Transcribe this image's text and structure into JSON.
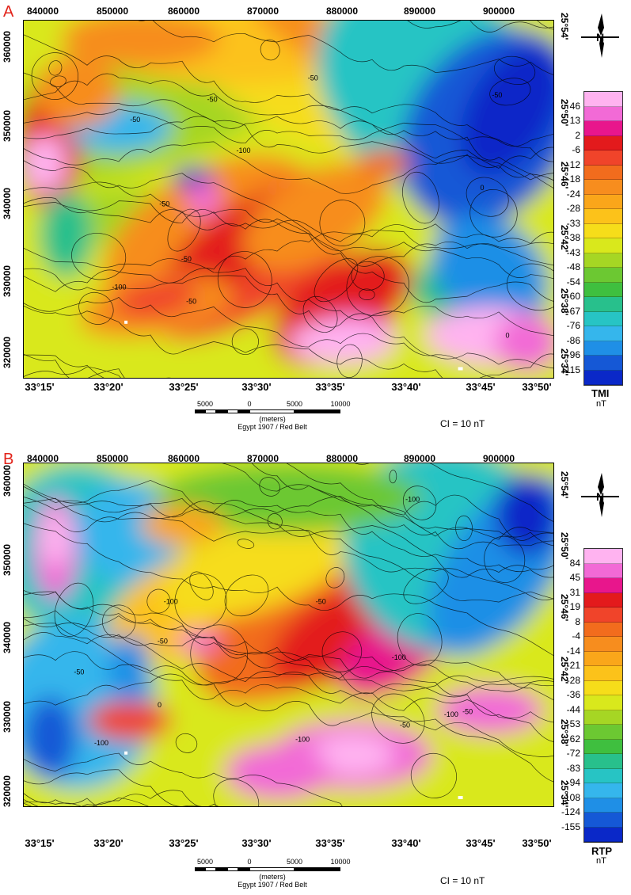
{
  "panels": [
    {
      "letter": "A",
      "top_ticks": [
        "840000",
        "850000",
        "860000",
        "870000",
        "880000",
        "890000",
        "900000"
      ],
      "left_ticks": [
        "360000",
        "350000",
        "340000",
        "330000",
        "320000"
      ],
      "bottom_ticks": [
        "33°15'",
        "33°20'",
        "33°25'",
        "33°30'",
        "33°35'",
        "33°40'",
        "33°45'",
        "33°50'"
      ],
      "right_ticks": [
        "25°54'",
        "25°50'",
        "25°46'",
        "25°42'",
        "25°38'",
        "25°34'"
      ],
      "contour_labels": [
        "-50",
        "-50",
        "-50",
        "-50",
        "-50",
        "-100",
        "-100",
        "-50",
        "0",
        "0",
        "-50"
      ],
      "legend_title": "TMI",
      "legend_unit": "nT",
      "legend_values": [
        "46",
        "13",
        "2",
        "-6",
        "-12",
        "-18",
        "-24",
        "-28",
        "-33",
        "-38",
        "-43",
        "-48",
        "-54",
        "-60",
        "-67",
        "-76",
        "-86",
        "-96",
        "-115"
      ],
      "scale_labels": [
        "5000",
        "0",
        "5000",
        "10000"
      ],
      "scale_units": "(meters)",
      "datum": "Egypt 1907 / Red Belt",
      "contour_interval": "CI = 10 nT"
    },
    {
      "letter": "B",
      "top_ticks": [
        "840000",
        "850000",
        "860000",
        "870000",
        "880000",
        "890000",
        "900000"
      ],
      "left_ticks": [
        "360000",
        "350000",
        "340000",
        "330000",
        "320000"
      ],
      "bottom_ticks": [
        "33°15'",
        "33°20'",
        "33°25'",
        "33°30'",
        "33°35'",
        "33°40'",
        "33°45'",
        "33°50'"
      ],
      "right_ticks": [
        "25°54'",
        "25°50'",
        "25°46'",
        "25°42'",
        "25°38'",
        "25°34'"
      ],
      "contour_labels": [
        "-100",
        "-100",
        "-100",
        "-50",
        "-50",
        "-50",
        "-100",
        "-100",
        "0",
        "-50",
        "-50",
        "-100"
      ],
      "legend_title": "RTP",
      "legend_unit": "nT",
      "legend_values": [
        "84",
        "45",
        "31",
        "19",
        "8",
        "-4",
        "-14",
        "-21",
        "-28",
        "-36",
        "-44",
        "-53",
        "-62",
        "-72",
        "-83",
        "-94",
        "-108",
        "-124",
        "-155"
      ],
      "scale_labels": [
        "5000",
        "0",
        "5000",
        "10000"
      ],
      "scale_units": "(meters)",
      "datum": "Egypt 1907 / Red Belt",
      "contour_interval": "CI = 10 nT"
    }
  ],
  "colors": {
    "ramp": [
      "#ffb3f0",
      "#f26ad6",
      "#e8168c",
      "#e31a1c",
      "#f0442a",
      "#f26c1d",
      "#f78d1e",
      "#faa61a",
      "#fcc21a",
      "#f6dd1a",
      "#d9e81c",
      "#a6d624",
      "#6cc832",
      "#3fbf3f",
      "#28c08c",
      "#27c4c4",
      "#35b6ec",
      "#1f8fe6",
      "#1558d6",
      "#0a28c8"
    ],
    "letter": "#e2231a"
  },
  "icons": [
    "north-arrow-icon"
  ]
}
